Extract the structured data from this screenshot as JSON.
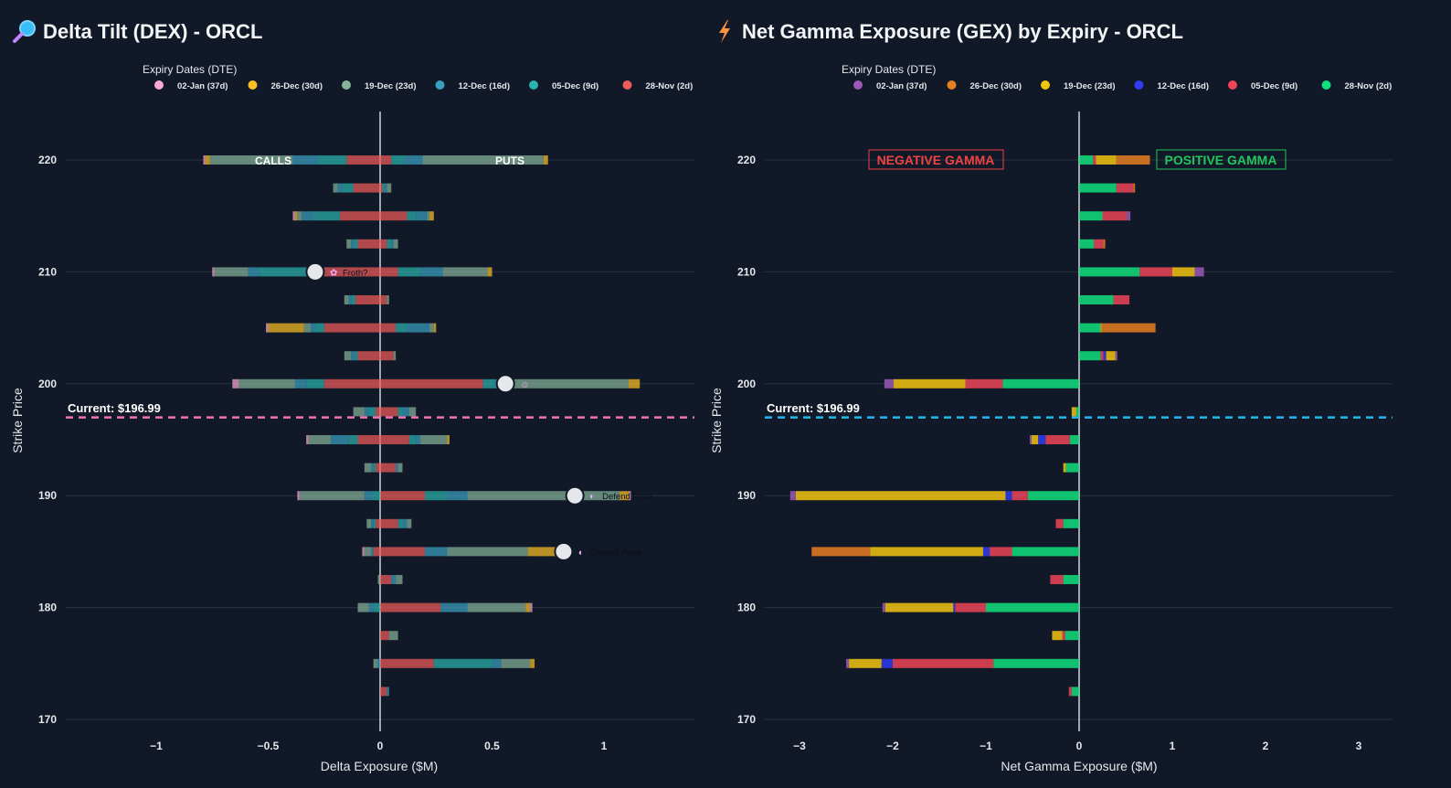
{
  "left": {
    "title": "Delta Tilt (DEX) - ORCL",
    "title_icon": "magnifier-icon",
    "legend": {
      "title": "Expiry Dates (DTE)",
      "items": [
        {
          "label": "02-Jan (37d)",
          "color": "#f9a8d4"
        },
        {
          "label": "26-Dec (30d)",
          "color": "#fbbf24"
        },
        {
          "label": "19-Dec (23d)",
          "color": "#86b39a"
        },
        {
          "label": "12-Dec (16d)",
          "color": "#3aa0c0"
        },
        {
          "label": "05-Dec (9d)",
          "color": "#2bb3ad"
        },
        {
          "label": "28-Nov (2d)",
          "color": "#ef5b5b"
        }
      ]
    },
    "current_label": "Current: $196.99",
    "current_line_color": "#f472b6",
    "side_labels": {
      "left": "CALLS",
      "right": "PUTS"
    },
    "annotations": [
      {
        "strike": 210,
        "value": -0.29,
        "text": "Froth?",
        "emoji": "✿"
      },
      {
        "strike": 200,
        "value": 0.56,
        "text": "",
        "emoji": "☺"
      },
      {
        "strike": 190,
        "value": 0.87,
        "text": "Defend Price",
        "emoji": "◐"
      },
      {
        "strike": 185,
        "value": 0.82,
        "text": "Defend Price",
        "emoji": "◐"
      }
    ]
  },
  "right": {
    "title": "Net Gamma Exposure (GEX) by Expiry - ORCL",
    "title_icon": "lightning-icon",
    "legend": {
      "title": "Expiry Dates (DTE)",
      "items": [
        {
          "label": "02-Jan (37d)",
          "color": "#9b59b6"
        },
        {
          "label": "26-Dec (30d)",
          "color": "#e67e22"
        },
        {
          "label": "19-Dec (23d)",
          "color": "#f1c40f"
        },
        {
          "label": "12-Dec (16d)",
          "color": "#2f3cf0"
        },
        {
          "label": "05-Dec (9d)",
          "color": "#ef4458"
        },
        {
          "label": "28-Nov (2d)",
          "color": "#10e07e"
        }
      ]
    },
    "current_label": "Current: $196.99",
    "current_line_color": "#22b8f0",
    "neg_label": "NEGATIVE GAMMA",
    "pos_label": "POSITIVE GAMMA"
  },
  "chart_data": [
    {
      "type": "bar",
      "orientation": "horizontal",
      "stacked": true,
      "title": "Delta Tilt (DEX) - ORCL",
      "xlabel": "Delta Exposure ($M)",
      "ylabel": "Strike Price",
      "xlim": [
        -1.4,
        1.4
      ],
      "ylim": [
        168,
        226
      ],
      "xticks": [
        -1,
        -0.5,
        0,
        0.5,
        1
      ],
      "xtick_labels": [
        "−1",
        "−0.5",
        "0",
        "0.5",
        "1"
      ],
      "yticks": [
        170,
        180,
        190,
        200,
        210,
        220
      ],
      "current_price": 196.99,
      "series_names": [
        "02-Jan (37d)",
        "26-Dec (30d)",
        "19-Dec (23d)",
        "12-Dec (16d)",
        "05-Dec (9d)",
        "28-Nov (2d)"
      ],
      "bars": [
        {
          "strike": 220,
          "neg": [
            0.01,
            0.02,
            0.37,
            0.11,
            0.13,
            0.15
          ],
          "pos": [
            0.0,
            0.02,
            0.54,
            0.08,
            0.06,
            0.05
          ]
        },
        {
          "strike": 217.5,
          "neg": [
            0,
            0,
            0.02,
            0.02,
            0.05,
            0.12
          ],
          "pos": [
            0,
            0,
            0.02,
            0.01,
            0.01,
            0.01
          ]
        },
        {
          "strike": 215,
          "neg": [
            0.01,
            0.01,
            0.02,
            0.05,
            0.12,
            0.18
          ],
          "pos": [
            0,
            0.02,
            0.01,
            0.05,
            0.04,
            0.12
          ]
        },
        {
          "strike": 212.5,
          "neg": [
            0,
            0,
            0.02,
            0.01,
            0.02,
            0.1
          ],
          "pos": [
            0,
            0,
            0.02,
            0.01,
            0.02,
            0.03
          ]
        },
        {
          "strike": 210,
          "neg": [
            0.01,
            0,
            0.15,
            0.05,
            0.29,
            0.25
          ],
          "pos": [
            0,
            0.02,
            0.2,
            0.1,
            0.1,
            0.08
          ]
        },
        {
          "strike": 207.5,
          "neg": [
            0,
            0,
            0.02,
            0.01,
            0.02,
            0.11
          ],
          "pos": [
            0,
            0,
            0.01,
            0.0,
            0.0,
            0.03
          ]
        },
        {
          "strike": 205,
          "neg": [
            0.01,
            0.16,
            0.03,
            0.02,
            0.04,
            0.25
          ],
          "pos": [
            0,
            0.01,
            0.02,
            0.1,
            0.05,
            0.07
          ]
        },
        {
          "strike": 202.5,
          "neg": [
            0,
            0,
            0.03,
            0.02,
            0.01,
            0.1
          ],
          "pos": [
            0,
            0,
            0.01,
            0.0,
            0.0,
            0.06
          ]
        },
        {
          "strike": 200,
          "neg": [
            0.03,
            0,
            0.25,
            0.05,
            0.08,
            0.25
          ],
          "pos": [
            0,
            0.05,
            0.55,
            0.05,
            0.05,
            0.46
          ]
        },
        {
          "strike": 197.5,
          "neg": [
            0,
            0,
            0.05,
            0.02,
            0.03,
            0.02
          ],
          "pos": [
            0,
            0,
            0.03,
            0.03,
            0.02,
            0.08
          ]
        },
        {
          "strike": 195,
          "neg": [
            0.01,
            0,
            0.1,
            0.08,
            0.04,
            0.1
          ],
          "pos": [
            0,
            0.01,
            0.12,
            0.02,
            0.03,
            0.13
          ]
        },
        {
          "strike": 192.5,
          "neg": [
            0,
            0,
            0.03,
            0.01,
            0.01,
            0.02
          ],
          "pos": [
            0,
            0,
            0.02,
            0.01,
            0.0,
            0.07
          ]
        },
        {
          "strike": 190,
          "neg": [
            0.01,
            0,
            0.29,
            0.03,
            0.04,
            0.0
          ],
          "pos": [
            0.01,
            0.04,
            0.68,
            0.09,
            0.1,
            0.2
          ]
        },
        {
          "strike": 187.5,
          "neg": [
            0,
            0,
            0.02,
            0.01,
            0.01,
            0.02
          ],
          "pos": [
            0,
            0,
            0.02,
            0.02,
            0.02,
            0.08
          ]
        },
        {
          "strike": 185,
          "neg": [
            0.01,
            0,
            0.03,
            0.01,
            0.0,
            0.03
          ],
          "pos": [
            0,
            0.17,
            0.36,
            0.1,
            0.0,
            0.2
          ]
        },
        {
          "strike": 182.5,
          "neg": [
            0,
            0,
            0.01,
            0.0,
            0.0,
            0.0
          ],
          "pos": [
            0,
            0,
            0.03,
            0.02,
            0.0,
            0.05
          ]
        },
        {
          "strike": 180,
          "neg": [
            0,
            0,
            0.05,
            0.02,
            0.03,
            0.0
          ],
          "pos": [
            0.01,
            0.02,
            0.26,
            0.12,
            0.0,
            0.27
          ]
        },
        {
          "strike": 177.5,
          "neg": [
            0,
            0,
            0,
            0,
            0,
            0.0
          ],
          "pos": [
            0,
            0,
            0.04,
            0,
            0,
            0.04
          ]
        },
        {
          "strike": 175,
          "neg": [
            0,
            0,
            0.02,
            0.01,
            0.0,
            0.0
          ],
          "pos": [
            0,
            0.02,
            0.13,
            0.04,
            0.26,
            0.24
          ]
        },
        {
          "strike": 172.5,
          "neg": [
            0,
            0,
            0,
            0,
            0,
            0.0
          ],
          "pos": [
            0,
            0,
            0.0,
            0.01,
            0.0,
            0.03
          ]
        }
      ]
    },
    {
      "type": "bar",
      "orientation": "horizontal",
      "stacked": true,
      "title": "Net Gamma Exposure (GEX) by Expiry - ORCL",
      "xlabel": "Net Gamma Exposure ($M)",
      "ylabel": "Strike Price",
      "xlim": [
        -3.4,
        3.4
      ],
      "ylim": [
        168,
        226
      ],
      "xticks": [
        -3,
        -2,
        -1,
        0,
        1,
        2,
        3
      ],
      "xtick_labels": [
        "−3",
        "−2",
        "−1",
        "0",
        "1",
        "2",
        "3"
      ],
      "yticks": [
        170,
        180,
        190,
        200,
        210,
        220
      ],
      "current_price": 196.99,
      "series_names": [
        "02-Jan (37d)",
        "26-Dec (30d)",
        "19-Dec (23d)",
        "12-Dec (16d)",
        "05-Dec (9d)",
        "28-Nov (2d)"
      ],
      "bars": [
        {
          "strike": 220,
          "values": [
            0.0,
            0.36,
            0.22,
            0.0,
            0.03,
            0.15
          ]
        },
        {
          "strike": 217.5,
          "values": [
            0.0,
            0.02,
            0.0,
            0.0,
            0.18,
            0.4
          ]
        },
        {
          "strike": 215,
          "values": [
            0.04,
            0.0,
            0.0,
            0.0,
            0.26,
            0.25
          ]
        },
        {
          "strike": 212.5,
          "values": [
            0.0,
            0.02,
            0.0,
            0.0,
            0.1,
            0.16
          ]
        },
        {
          "strike": 210,
          "values": [
            0.1,
            0.0,
            0.24,
            0.0,
            0.35,
            0.65
          ]
        },
        {
          "strike": 207.5,
          "values": [
            0.0,
            0.0,
            0.0,
            0.0,
            0.17,
            0.37
          ]
        },
        {
          "strike": 205,
          "values": [
            0.0,
            0.58,
            0.01,
            0.0,
            0.0,
            0.23
          ]
        },
        {
          "strike": 202.5,
          "values": [
            0.02,
            0.0,
            0.1,
            0.03,
            0.03,
            0.23
          ]
        },
        {
          "strike": 200,
          "values": [
            -0.1,
            0.0,
            -0.77,
            0.0,
            -0.4,
            -0.82
          ]
        },
        {
          "strike": 197.5,
          "values": [
            0.0,
            0.0,
            -0.05,
            0.0,
            0.0,
            -0.03
          ]
        },
        {
          "strike": 195,
          "values": [
            -0.02,
            0.0,
            -0.07,
            -0.08,
            -0.26,
            -0.1
          ]
        },
        {
          "strike": 192.5,
          "values": [
            0.0,
            0.0,
            -0.03,
            0.0,
            0.0,
            -0.14
          ]
        },
        {
          "strike": 190,
          "values": [
            -0.06,
            0.0,
            -2.25,
            -0.07,
            -0.17,
            -0.55
          ]
        },
        {
          "strike": 187.5,
          "values": [
            0.0,
            0.0,
            0.0,
            0.0,
            -0.08,
            -0.17
          ]
        },
        {
          "strike": 185,
          "values": [
            0.0,
            -0.63,
            -1.21,
            -0.07,
            -0.24,
            -0.72
          ]
        },
        {
          "strike": 182.5,
          "values": [
            0.0,
            0.0,
            0.0,
            0.0,
            -0.14,
            -0.17
          ]
        },
        {
          "strike": 180,
          "values": [
            -0.03,
            0.0,
            -0.73,
            -0.02,
            -0.33,
            -1.0
          ]
        },
        {
          "strike": 177.5,
          "values": [
            0.0,
            0.0,
            -0.11,
            0.0,
            -0.03,
            -0.15
          ]
        },
        {
          "strike": 175,
          "values": [
            -0.03,
            0.0,
            -0.35,
            -0.12,
            -1.08,
            -0.92
          ]
        },
        {
          "strike": 172.5,
          "values": [
            0.0,
            0.0,
            0.0,
            0.0,
            -0.03,
            -0.08
          ]
        }
      ]
    }
  ]
}
